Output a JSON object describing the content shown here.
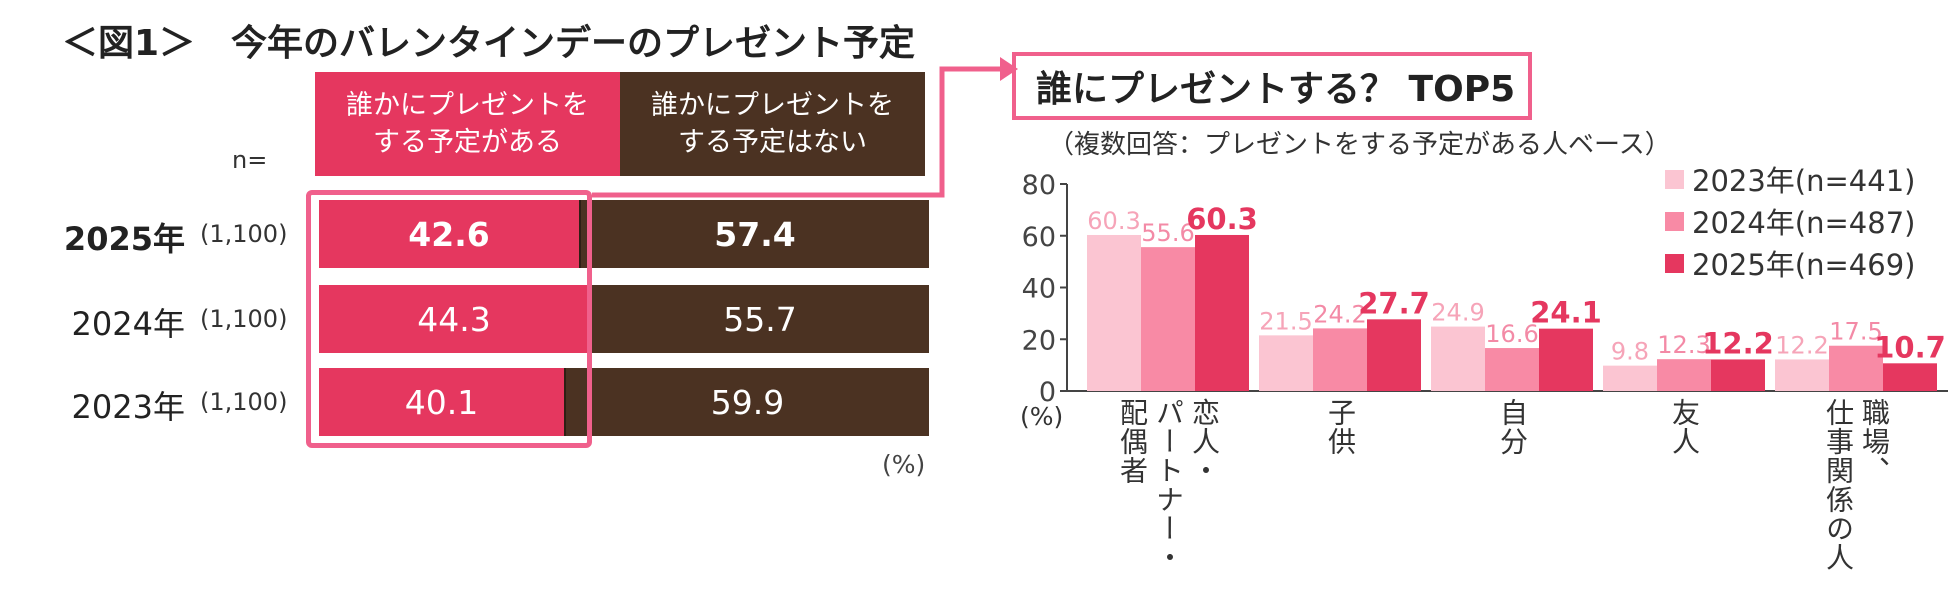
{
  "figure": {
    "title": "＜図1＞　今年のバレンタインデーのプレゼント予定"
  },
  "left_chart": {
    "headers": [
      "誰かにプレゼントを\nする予定がある",
      "誰かにプレゼントを\nする予定はない"
    ],
    "n_label": "n=",
    "unit": "(%)",
    "colors": {
      "yes": "#e5375f",
      "no": "#4b3222",
      "divider": "#2e1f14",
      "highlight": "#f0608c"
    },
    "rows": [
      {
        "year": "2025年",
        "n": "(1,100)",
        "yes": 42.6,
        "no": 57.4,
        "bold": true
      },
      {
        "year": "2024年",
        "n": "(1,100)",
        "yes": 44.3,
        "no": 55.7,
        "bold": false
      },
      {
        "year": "2023年",
        "n": "(1,100)",
        "yes": 40.1,
        "no": 59.9,
        "bold": false
      }
    ]
  },
  "right_chart": {
    "box_title": "誰にプレゼントする？ TOP5",
    "subtitle": "（複数回答：プレゼントをする予定がある人ベース）",
    "y_unit": "(%)"
  },
  "chart_data": {
    "type": "bar",
    "categories": [
      "恋人・パートナー・配偶者",
      "子供",
      "自分",
      "友人",
      "職場、仕事関係の人"
    ],
    "category_columns": [
      [
        "恋人・",
        "パートナー・",
        "配偶者"
      ],
      [
        "子供"
      ],
      [
        "自分"
      ],
      [
        "友人"
      ],
      [
        "職場、",
        "仕事関係の人"
      ]
    ],
    "series": [
      {
        "name": "2023年(n=441)",
        "color": "#fbc5d2",
        "label_color": "#f6a4b8",
        "values": [
          60.3,
          21.5,
          24.9,
          9.8,
          12.2
        ]
      },
      {
        "name": "2024年(n=487)",
        "color": "#f88aa5",
        "label_color": "#f38aa6",
        "values": [
          55.6,
          24.2,
          16.6,
          12.3,
          17.5
        ]
      },
      {
        "name": "2025年(n=469)",
        "color": "#e5375f",
        "label_color": "#e5375f",
        "values": [
          60.3,
          27.7,
          24.1,
          12.2,
          10.7
        ]
      }
    ],
    "ylim": [
      0,
      80
    ],
    "yticks": [
      0,
      20,
      40,
      60,
      80
    ],
    "ylabel": "(%)",
    "legend_position": "top-right",
    "grid": false
  }
}
